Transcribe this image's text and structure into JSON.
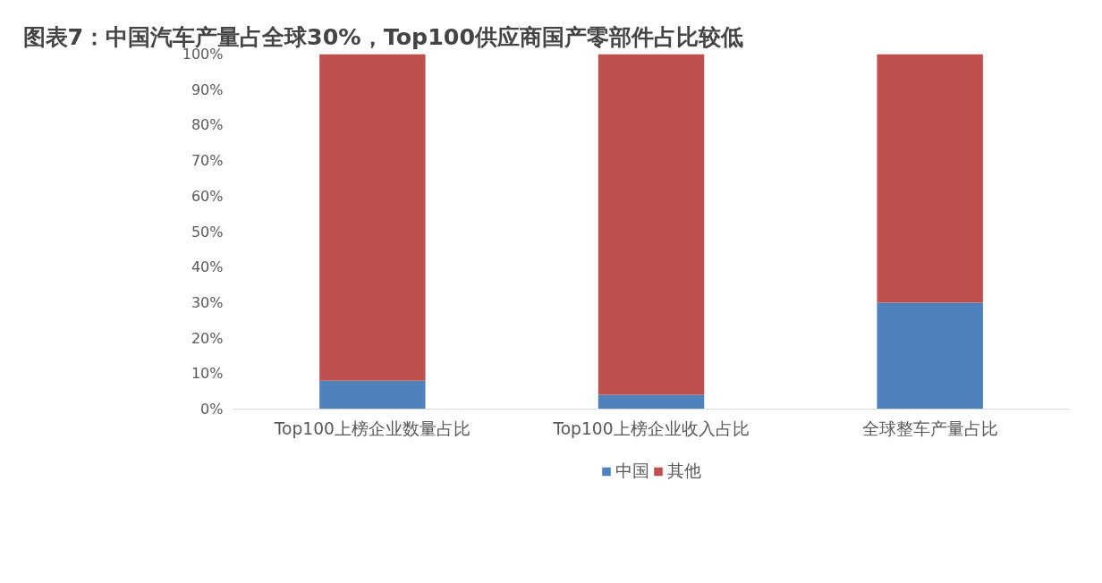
{
  "chart_data": {
    "type": "bar",
    "title": "图表7：中国汽车产量占全球30%，Top100供应商国产零部件占比较低",
    "categories": [
      "Top100上榜企业数量占比",
      "Top100上榜企业收入占比",
      "全球整车产量占比"
    ],
    "series": [
      {
        "name": "中国",
        "color": "#4f81bd",
        "values": [
          8,
          4,
          30
        ]
      },
      {
        "name": "其他",
        "color": "#c0504d",
        "values": [
          92,
          96,
          70
        ]
      }
    ],
    "stacked": true,
    "ylim": [
      0,
      100
    ],
    "yticks": [
      {
        "value": 0,
        "label": "0%"
      },
      {
        "value": 10,
        "label": "10%"
      },
      {
        "value": 20,
        "label": "20%"
      },
      {
        "value": 30,
        "label": "30%"
      },
      {
        "value": 40,
        "label": "40%"
      },
      {
        "value": 50,
        "label": "50%"
      },
      {
        "value": 60,
        "label": "60%"
      },
      {
        "value": 70,
        "label": "70%"
      },
      {
        "value": 80,
        "label": "80%"
      },
      {
        "value": 90,
        "label": "90%"
      },
      {
        "value": 100,
        "label": "100%"
      }
    ],
    "grid": false,
    "legend": "bottom"
  }
}
